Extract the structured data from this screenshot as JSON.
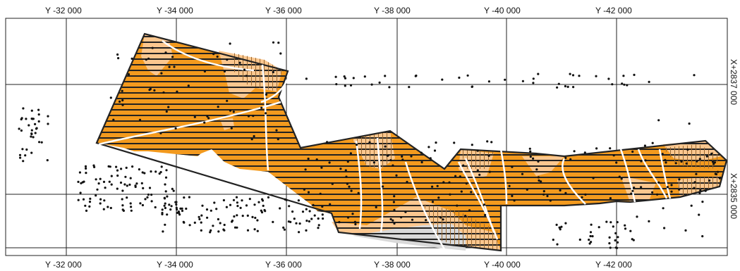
{
  "axis_labels": {
    "top": [
      "Y -32 000",
      "Y -34 000",
      "Y -36 000",
      "Y -38 000",
      "Y -40 000",
      "Y -42 000"
    ],
    "bottom": [
      "Y -32 000",
      "Y -34 000",
      "Y -36 000",
      "Y -38 000",
      "Y -40 000",
      "Y -42 000"
    ],
    "right": [
      "X+2837 000",
      "X+2835 000"
    ]
  },
  "colors": {
    "orange": "#f39a1e",
    "light_orange": "#fbc78f",
    "gray": "#d9d9d9",
    "line": "#222222",
    "grid": "#222222",
    "white_line": "#ffffff",
    "dot": "#111111"
  }
}
